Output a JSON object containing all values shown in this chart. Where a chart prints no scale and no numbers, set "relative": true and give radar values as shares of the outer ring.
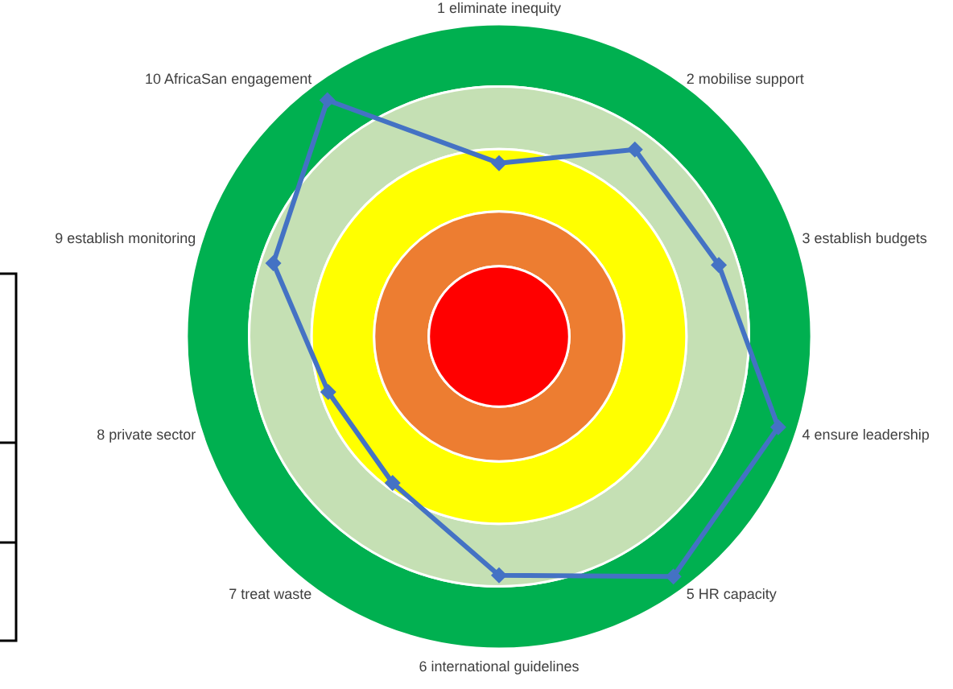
{
  "chart_data": {
    "type": "radar",
    "relative": true,
    "marker": "diamond",
    "categories": [
      "1 eliminate inequity",
      "2 mobilise support",
      "3 establish budgets",
      "4 ensure leadership",
      "5 HR capacity",
      "6 international guidelines",
      "7 treat waste",
      "8 private sector",
      "9 establish monitoring",
      "10 AfricaSan engagement"
    ],
    "series": [
      {
        "color": "#4472c4",
        "values": [
          0.555,
          0.74,
          0.74,
          0.94,
          0.95,
          0.765,
          0.58,
          0.575,
          0.76,
          0.935
        ]
      }
    ]
  }
}
